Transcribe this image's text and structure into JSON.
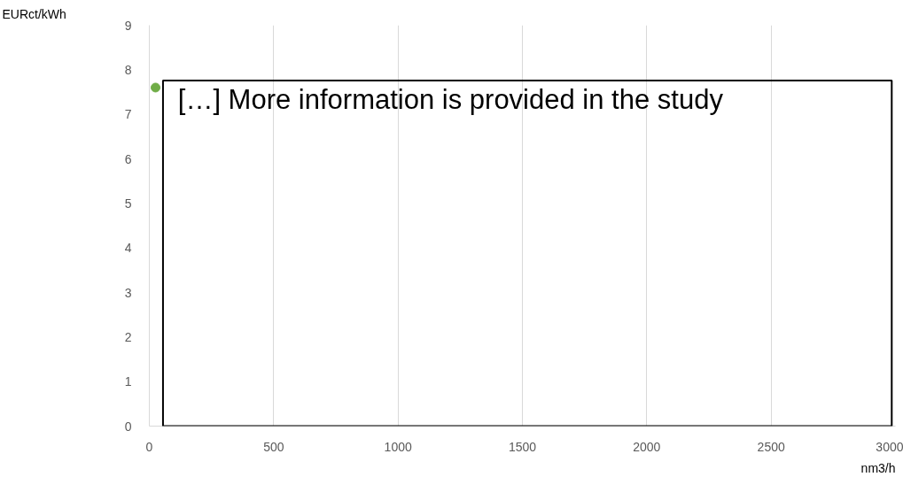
{
  "chart_data": {
    "type": "scatter",
    "xlabel": "nm3/h",
    "ylabel": "EURct/kWh",
    "annotations": [
      "[…] More information is provided in the study"
    ],
    "series": [
      {
        "color": "#70ad47",
        "x": [
          25
        ],
        "values": [
          7.6
        ]
      }
    ],
    "xlim": [
      0,
      3000
    ],
    "ylim": [
      0,
      9
    ],
    "xticks": [
      0,
      500,
      1000,
      1500,
      2000,
      2500,
      3000
    ],
    "yticks": [
      0,
      1,
      2,
      3,
      4,
      5,
      6,
      7,
      8,
      9
    ],
    "grid": "x",
    "marker": "circle"
  }
}
